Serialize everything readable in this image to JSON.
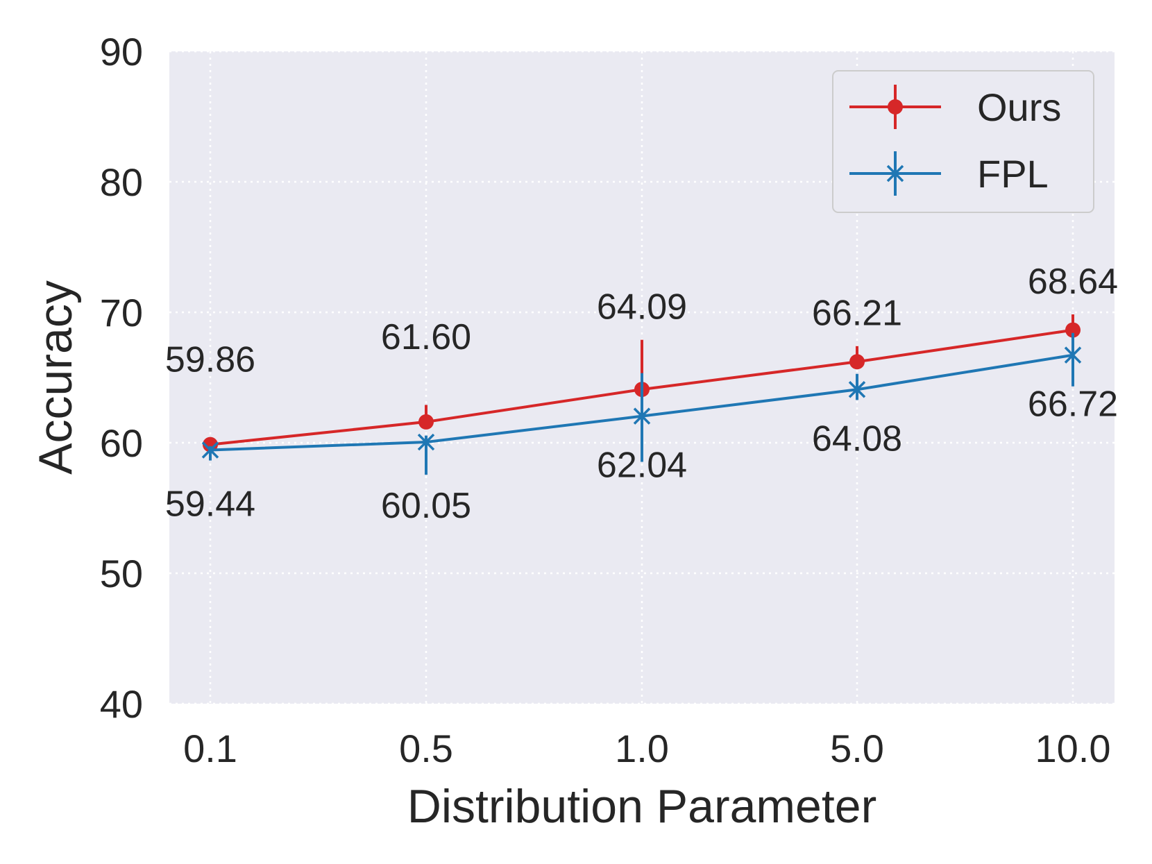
{
  "chart_data": {
    "type": "line",
    "xlabel": "Distribution Parameter",
    "ylabel": "Accuracy",
    "categories": [
      "0.1",
      "0.5",
      "1.0",
      "5.0",
      "10.0"
    ],
    "yticks": [
      "40",
      "50",
      "60",
      "70",
      "80",
      "90"
    ],
    "ylim": [
      40,
      90
    ],
    "grid": true,
    "legend_position": "top-right",
    "series": [
      {
        "name": "Ours",
        "color": "#d62728",
        "marker": "circle",
        "values": [
          59.86,
          61.6,
          64.09,
          66.21,
          68.64
        ],
        "err_low": [
          0.3,
          0.5,
          0.4,
          0.5,
          0.5
        ],
        "err_high": [
          0.3,
          1.3,
          3.8,
          1.2,
          1.2
        ],
        "labels": [
          "59.86",
          "61.60",
          "64.09",
          "66.21",
          "68.64"
        ],
        "label_side": "above"
      },
      {
        "name": "FPL",
        "color": "#1f77b4",
        "marker": "x",
        "values": [
          59.44,
          60.05,
          62.04,
          64.08,
          66.72
        ],
        "err_low": [
          0.8,
          2.5,
          3.5,
          0.8,
          2.4
        ],
        "err_high": [
          0.3,
          0.5,
          3.3,
          1.2,
          1.7
        ],
        "labels": [
          "59.44",
          "60.05",
          "62.04",
          "64.08",
          "66.72"
        ],
        "label_side": "below"
      }
    ]
  }
}
